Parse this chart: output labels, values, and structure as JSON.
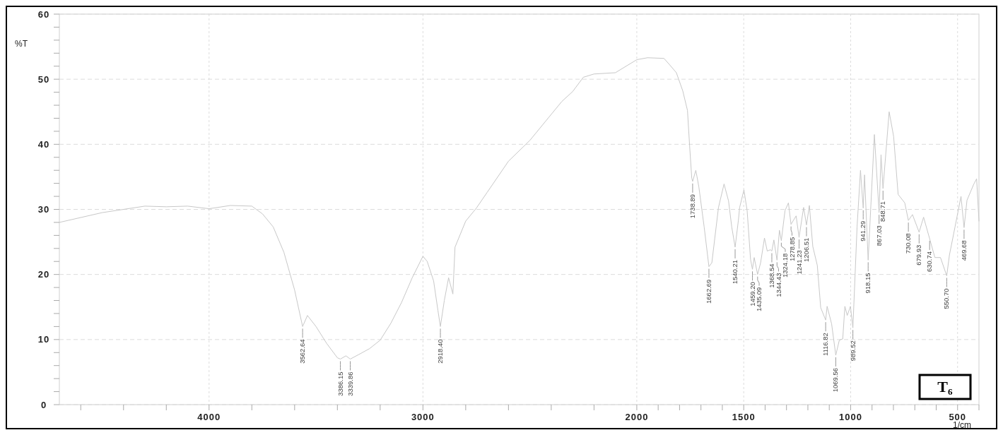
{
  "chart_data": {
    "type": "line",
    "xlabel": "1/cm",
    "ylabel": "%T",
    "xlim": [
      4700,
      400
    ],
    "ylim": [
      0,
      60
    ],
    "xticks": [
      {
        "value": 4600,
        "label": null
      },
      {
        "value": 4400,
        "label": null
      },
      {
        "value": 4200,
        "label": null
      },
      4000,
      {
        "value": 3800,
        "label": null
      },
      {
        "value": 3600,
        "label": null
      },
      {
        "value": 3400,
        "label": null
      },
      {
        "value": 3200,
        "label": null
      },
      3000,
      {
        "value": 2800,
        "label": null
      },
      {
        "value": 2600,
        "label": null
      },
      {
        "value": 2400,
        "label": null
      },
      {
        "value": 2200,
        "label": null
      },
      2000,
      {
        "value": 1900,
        "label": null
      },
      {
        "value": 1800,
        "label": null
      },
      {
        "value": 1700,
        "label": null
      },
      {
        "value": 1600,
        "label": null
      },
      1500,
      {
        "value": 1400,
        "label": null
      },
      {
        "value": 1300,
        "label": null
      },
      {
        "value": 1200,
        "label": null
      },
      {
        "value": 1100,
        "label": null
      },
      1000,
      {
        "value": 900,
        "label": null
      },
      {
        "value": 800,
        "label": null
      },
      {
        "value": 700,
        "label": null
      },
      {
        "value": 600,
        "label": null
      },
      500,
      {
        "value": 400,
        "label": null
      }
    ],
    "yticks": [
      0,
      {
        "value": 2,
        "label": null
      },
      {
        "value": 4,
        "label": null
      },
      {
        "value": 6,
        "label": null
      },
      {
        "value": 8,
        "label": null
      },
      10,
      {
        "value": 12,
        "label": null
      },
      {
        "value": 14,
        "label": null
      },
      {
        "value": 16,
        "label": null
      },
      {
        "value": 18,
        "label": null
      },
      20,
      {
        "value": 22,
        "label": null
      },
      {
        "value": 24,
        "label": null
      },
      {
        "value": 26,
        "label": null
      },
      {
        "value": 28,
        "label": null
      },
      30,
      {
        "value": 32,
        "label": null
      },
      {
        "value": 34,
        "label": null
      },
      {
        "value": 36,
        "label": null
      },
      {
        "value": 38,
        "label": null
      },
      40,
      {
        "value": 42,
        "label": null
      },
      {
        "value": 44,
        "label": null
      },
      {
        "value": 46,
        "label": null
      },
      {
        "value": 48,
        "label": null
      },
      50,
      {
        "value": 52,
        "label": null
      },
      {
        "value": 54,
        "label": null
      },
      {
        "value": 56,
        "label": null
      },
      {
        "value": 58,
        "label": null
      },
      60
    ],
    "grid": true,
    "marker": "none",
    "line_style": "solid",
    "series": [
      {
        "color": "#c8c8c8",
        "x": [
          4700,
          4500,
          4300,
          4200,
          4100,
          4000,
          3900,
          3800,
          3750,
          3700,
          3650,
          3600,
          3562.64,
          3540,
          3500,
          3450,
          3400,
          3386.15,
          3360,
          3339.86,
          3300,
          3250,
          3200,
          3150,
          3100,
          3050,
          3000,
          2980,
          2950,
          2930,
          2918.4,
          2900,
          2880,
          2860,
          2850,
          2800,
          2750,
          2700,
          2600,
          2500,
          2400,
          2350,
          2300,
          2250,
          2200,
          2100,
          2000,
          1950,
          1873,
          1846,
          1815,
          1785,
          1763,
          1753,
          1743,
          1738.89,
          1724,
          1710,
          1685,
          1662.69,
          1649,
          1618,
          1592,
          1571,
          1556,
          1540.21,
          1525,
          1519,
          1499,
          1484,
          1468,
          1459.2,
          1451,
          1435.09,
          1421,
          1403,
          1390,
          1375,
          1368.54,
          1359,
          1344.43,
          1333,
          1324.18,
          1307,
          1291,
          1278.85,
          1255,
          1241.23,
          1220,
          1206.51,
          1193,
          1177,
          1156,
          1140,
          1116.82,
          1110,
          1089,
          1069.56,
          1053,
          1037,
          1027,
          1016,
          1001,
          989.52,
          970,
          954,
          941.29,
          935,
          918.15,
          889,
          867.03,
          858,
          848.71,
          820,
          799,
          778,
          747,
          730.08,
          711,
          679.93,
          659,
          630.74,
          606,
          580,
          550.7,
          538,
          512,
          484,
          469.68,
          456,
          424,
          411,
          400
        ],
        "values": [
          28.0,
          29.5,
          30.5,
          30.4,
          30.5,
          30.1,
          30.6,
          30.5,
          29.3,
          27.3,
          23.4,
          17.6,
          12.0,
          13.7,
          12.0,
          9.4,
          7.2,
          7.0,
          7.5,
          7.0,
          7.7,
          8.6,
          9.9,
          12.5,
          15.7,
          19.5,
          22.8,
          22.0,
          19.0,
          14.5,
          12.0,
          16.0,
          19.5,
          17.0,
          24.2,
          28.2,
          30.2,
          32.6,
          37.4,
          40.6,
          44.6,
          46.6,
          48.1,
          50.3,
          50.8,
          51.0,
          53.0,
          53.3,
          53.2,
          52.2,
          51.0,
          48.2,
          45.2,
          39.8,
          34.8,
          34.3,
          36.0,
          33.5,
          27.3,
          21.2,
          21.8,
          30.3,
          33.9,
          31.3,
          27.3,
          24.2,
          28.3,
          30.3,
          33.0,
          29.8,
          22.3,
          20.8,
          22.6,
          20.0,
          21.8,
          25.6,
          23.6,
          23.8,
          23.6,
          25.3,
          22.2,
          26.8,
          25.2,
          29.8,
          31.0,
          27.7,
          29.0,
          25.7,
          30.3,
          27.6,
          30.6,
          24.3,
          21.4,
          14.9,
          13.0,
          15.1,
          12.4,
          7.6,
          9.9,
          10.1,
          15.1,
          13.7,
          15.1,
          11.8,
          27.3,
          36.0,
          30.2,
          35.3,
          22.2,
          41.5,
          29.5,
          38.4,
          33.2,
          45.0,
          41.2,
          32.3,
          31.0,
          28.3,
          29.2,
          26.5,
          28.8,
          25.5,
          22.6,
          22.6,
          19.8,
          23.0,
          27.3,
          32.0,
          27.2,
          31.4,
          33.9,
          34.7,
          28.2
        ]
      }
    ],
    "annotations": [
      {
        "text": "3562.64",
        "x": 3562.64,
        "y": 12.0
      },
      {
        "text": "3386.15",
        "x": 3386.15,
        "y": 7.0
      },
      {
        "text": "3339.86",
        "x": 3339.86,
        "y": 7.0
      },
      {
        "text": "2918.40",
        "x": 2918.4,
        "y": 12.0
      },
      {
        "text": "1738.89",
        "x": 1738.89,
        "y": 34.3
      },
      {
        "text": "1662.69",
        "x": 1662.69,
        "y": 21.2
      },
      {
        "text": "1540.21",
        "x": 1540.21,
        "y": 24.2
      },
      {
        "text": "1459.20",
        "x": 1459.2,
        "y": 20.8
      },
      {
        "text": "1435.09",
        "x": 1435.09,
        "y": 20.0
      },
      {
        "text": "1368.54",
        "x": 1368.54,
        "y": 23.6
      },
      {
        "text": "1344.43",
        "x": 1344.43,
        "y": 22.2
      },
      {
        "text": "1324.18",
        "x": 1324.18,
        "y": 25.2
      },
      {
        "text": "1278.85",
        "x": 1278.85,
        "y": 27.7
      },
      {
        "text": "1241.23",
        "x": 1241.23,
        "y": 25.7
      },
      {
        "text": "1206.51",
        "x": 1206.51,
        "y": 27.6
      },
      {
        "text": "1116.82",
        "x": 1116.82,
        "y": 13.0
      },
      {
        "text": "1069.56",
        "x": 1069.56,
        "y": 7.6
      },
      {
        "text": "989.52",
        "x": 989.52,
        "y": 11.8
      },
      {
        "text": "941.29",
        "x": 941.29,
        "y": 30.2
      },
      {
        "text": "918.15",
        "x": 918.15,
        "y": 22.2
      },
      {
        "text": "867.03",
        "x": 867.03,
        "y": 29.5
      },
      {
        "text": "848.71",
        "x": 848.71,
        "y": 33.2
      },
      {
        "text": "730.08",
        "x": 730.08,
        "y": 28.3
      },
      {
        "text": "679.93",
        "x": 679.93,
        "y": 26.5
      },
      {
        "text": "630.74",
        "x": 630.74,
        "y": 25.5
      },
      {
        "text": "550.70",
        "x": 550.7,
        "y": 19.8
      },
      {
        "text": "469.68",
        "x": 469.68,
        "y": 27.2
      },
      "T₆"
    ]
  }
}
